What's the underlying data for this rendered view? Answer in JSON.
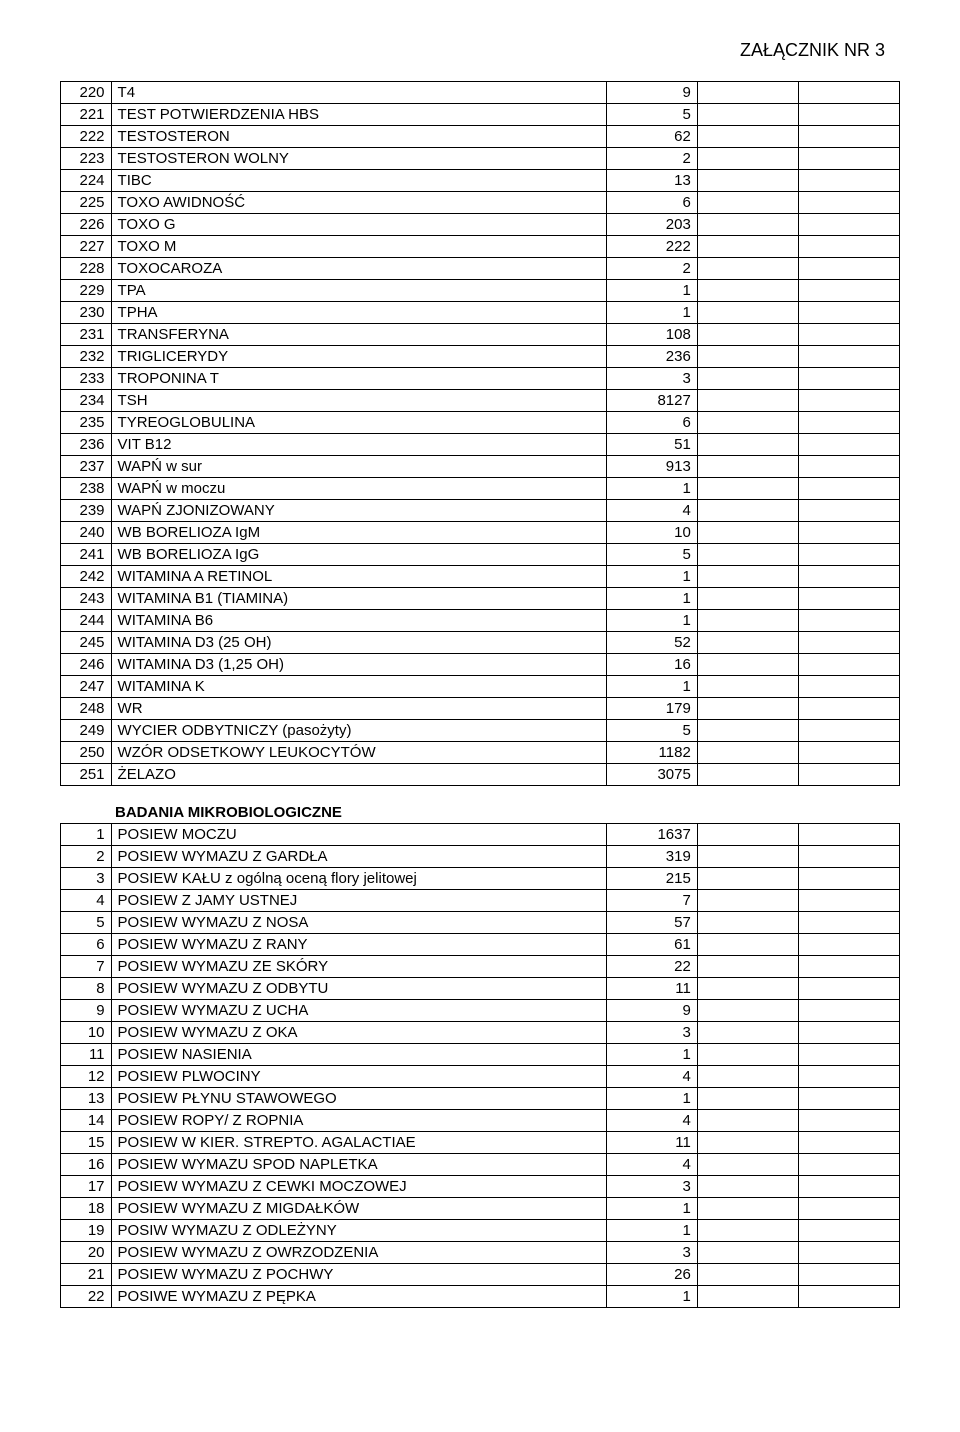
{
  "header": "ZAŁĄCZNIK  NR 3",
  "section2_title": "BADANIA MIKROBIOLOGICZNE",
  "rows1": [
    {
      "idx": "220",
      "name": "T4",
      "val": "9"
    },
    {
      "idx": "221",
      "name": "TEST POTWIERDZENIA HBS",
      "val": "5"
    },
    {
      "idx": "222",
      "name": "TESTOSTERON",
      "val": "62"
    },
    {
      "idx": "223",
      "name": "TESTOSTERON WOLNY",
      "val": "2"
    },
    {
      "idx": "224",
      "name": "TIBC",
      "val": "13"
    },
    {
      "idx": "225",
      "name": "TOXO AWIDNOŚĆ",
      "val": "6"
    },
    {
      "idx": "226",
      "name": "TOXO G",
      "val": "203"
    },
    {
      "idx": "227",
      "name": "TOXO M",
      "val": "222"
    },
    {
      "idx": "228",
      "name": "TOXOCAROZA",
      "val": "2"
    },
    {
      "idx": "229",
      "name": "TPA",
      "val": "1"
    },
    {
      "idx": "230",
      "name": "TPHA",
      "val": "1"
    },
    {
      "idx": "231",
      "name": "TRANSFERYNA",
      "val": "108"
    },
    {
      "idx": "232",
      "name": "TRIGLICERYDY",
      "val": "236"
    },
    {
      "idx": "233",
      "name": "TROPONINA T",
      "val": "3"
    },
    {
      "idx": "234",
      "name": "TSH",
      "val": "8127"
    },
    {
      "idx": "235",
      "name": "TYREOGLOBULINA",
      "val": "6"
    },
    {
      "idx": "236",
      "name": "VIT B12",
      "val": "51"
    },
    {
      "idx": "237",
      "name": "WAPŃ w sur",
      "val": "913"
    },
    {
      "idx": "238",
      "name": "WAPŃ w moczu",
      "val": "1"
    },
    {
      "idx": "239",
      "name": "WAPŃ ZJONIZOWANY",
      "val": "4"
    },
    {
      "idx": "240",
      "name": "WB BORELIOZA IgM",
      "val": "10"
    },
    {
      "idx": "241",
      "name": "WB BORELIOZA IgG",
      "val": "5"
    },
    {
      "idx": "242",
      "name": "WITAMINA A  RETINOL",
      "val": "1"
    },
    {
      "idx": "243",
      "name": "WITAMINA B1  (TIAMINA)",
      "val": "1"
    },
    {
      "idx": "244",
      "name": "WITAMINA B6",
      "val": "1"
    },
    {
      "idx": "245",
      "name": "WITAMINA D3 (25 OH)",
      "val": "52"
    },
    {
      "idx": "246",
      "name": "WITAMINA D3 (1,25 OH)",
      "val": "16"
    },
    {
      "idx": "247",
      "name": "WITAMINA K",
      "val": "1"
    },
    {
      "idx": "248",
      "name": "WR",
      "val": "179"
    },
    {
      "idx": "249",
      "name": "WYCIER ODBYTNICZY (pasożyty)",
      "val": "5"
    },
    {
      "idx": "250",
      "name": "WZÓR ODSETKOWY LEUKOCYTÓW",
      "val": "1182"
    },
    {
      "idx": "251",
      "name": "ŻELAZO",
      "val": "3075"
    }
  ],
  "rows2": [
    {
      "idx": "1",
      "name": "POSIEW MOCZU",
      "val": "1637"
    },
    {
      "idx": "2",
      "name": "POSIEW WYMAZU Z GARDŁA",
      "val": "319"
    },
    {
      "idx": "3",
      "name": "POSIEW KAŁU z ogólną oceną flory jelitowej",
      "val": "215"
    },
    {
      "idx": "4",
      "name": "POSIEW Z JAMY USTNEJ",
      "val": "7"
    },
    {
      "idx": "5",
      "name": "POSIEW WYMAZU Z NOSA",
      "val": "57"
    },
    {
      "idx": "6",
      "name": "POSIEW WYMAZU Z RANY",
      "val": "61"
    },
    {
      "idx": "7",
      "name": "POSIEW WYMAZU ZE SKÓRY",
      "val": "22"
    },
    {
      "idx": "8",
      "name": "POSIEW WYMAZU Z ODBYTU",
      "val": "11"
    },
    {
      "idx": "9",
      "name": "POSIEW WYMAZU Z UCHA",
      "val": "9"
    },
    {
      "idx": "10",
      "name": "POSIEW WYMAZU Z OKA",
      "val": "3"
    },
    {
      "idx": "11",
      "name": "POSIEW NASIENIA",
      "val": "1"
    },
    {
      "idx": "12",
      "name": "POSIEW PLWOCINY",
      "val": "4"
    },
    {
      "idx": "13",
      "name": "POSIEW PŁYNU STAWOWEGO",
      "val": "1"
    },
    {
      "idx": "14",
      "name": "POSIEW ROPY/ Z ROPNIA",
      "val": "4"
    },
    {
      "idx": "15",
      "name": "POSIEW W KIER. STREPTO. AGALACTIAE",
      "val": "11"
    },
    {
      "idx": "16",
      "name": "POSIEW WYMAZU SPOD NAPLETKA",
      "val": "4"
    },
    {
      "idx": "17",
      "name": "POSIEW WYMAZU Z CEWKI MOCZOWEJ",
      "val": "3"
    },
    {
      "idx": "18",
      "name": "POSIEW WYMAZU Z MIGDAŁKÓW",
      "val": "1"
    },
    {
      "idx": "19",
      "name": "POSIW WYMAZU Z ODLEŻYNY",
      "val": "1"
    },
    {
      "idx": "20",
      "name": "POSIEW WYMAZU Z OWRZODZENIA",
      "val": "3"
    },
    {
      "idx": "21",
      "name": "POSIEW WYMAZU Z POCHWY",
      "val": "26"
    },
    {
      "idx": "22",
      "name": "POSIWE WYMAZU Z PĘPKA",
      "val": "1"
    }
  ]
}
